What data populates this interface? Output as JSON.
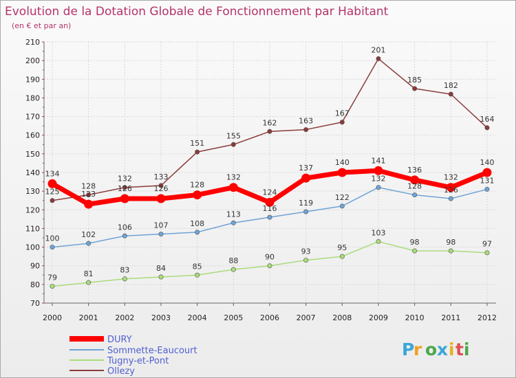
{
  "chart_data": {
    "type": "line",
    "title": "Evolution de la Dotation Globale de Fonctionnement par Habitant",
    "subtitle": "(en € et par an)",
    "xlabel": "",
    "ylabel": "",
    "x": [
      "2000",
      "2001",
      "2002",
      "2003",
      "2004",
      "2005",
      "2006",
      "2007",
      "2008",
      "2009",
      "2010",
      "2011",
      "2012"
    ],
    "ylim": [
      70,
      210
    ],
    "yticks": [
      70,
      80,
      90,
      100,
      110,
      120,
      130,
      140,
      150,
      160,
      170,
      180,
      190,
      200,
      210
    ],
    "grid": true,
    "legend_position": "bottom-left",
    "series": [
      {
        "name": "DURY",
        "color": "#ff0000",
        "values": [
          134,
          123,
          126,
          126,
          128,
          132,
          124,
          137,
          140,
          141,
          136,
          132,
          140
        ]
      },
      {
        "name": "Sommette-Eaucourt",
        "color": "#6fa3d6",
        "values": [
          100,
          102,
          106,
          107,
          108,
          113,
          116,
          119,
          122,
          132,
          128,
          126,
          131
        ]
      },
      {
        "name": "Tugny-et-Pont",
        "color": "#a8dc7a",
        "values": [
          79,
          81,
          83,
          84,
          85,
          88,
          90,
          93,
          95,
          103,
          98,
          98,
          97
        ]
      },
      {
        "name": "Ollezy",
        "color": "#8b3a3a",
        "values": [
          125,
          128,
          132,
          133,
          151,
          155,
          162,
          163,
          167,
          201,
          185,
          182,
          164
        ]
      }
    ]
  },
  "logo": {
    "letters": [
      "P",
      "r",
      "o",
      "x",
      "i",
      "t",
      "i"
    ],
    "colors": [
      "#3aa6d8",
      "#f0a020",
      "#4aa84a",
      "#3aa6d8",
      "#e8b020",
      "#e05050",
      "#4aa84a"
    ]
  }
}
